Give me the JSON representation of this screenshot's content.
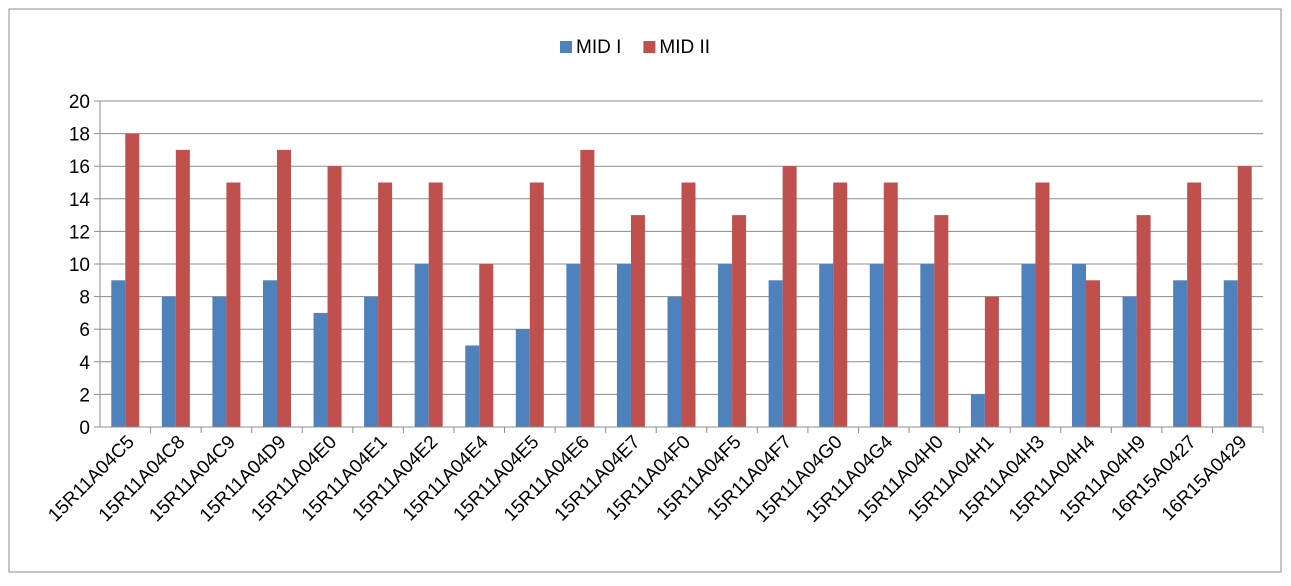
{
  "chart_data": {
    "type": "bar",
    "title": "",
    "xlabel": "",
    "ylabel": "",
    "ylim": [
      0,
      20
    ],
    "ytick_step": 2,
    "grid": true,
    "legend_position": "top",
    "categories": [
      "15R11A04C5",
      "15R11A04C8",
      "15R11A04C9",
      "15R11A04D9",
      "15R11A04E0",
      "15R11A04E1",
      "15R11A04E2",
      "15R11A04E4",
      "15R11A04E5",
      "15R11A04E6",
      "15R11A04E7",
      "15R11A04F0",
      "15R11A04F5",
      "15R11A04F7",
      "15R11A04G0",
      "15R11A04G4",
      "15R11A04H0",
      "15R11A04H1",
      "15R11A04H3",
      "15R11A04H4",
      "15R11A04H9",
      "16R15A0427",
      "16R15A0429"
    ],
    "series": [
      {
        "name": "MID I",
        "color": "#4f81bd",
        "values": [
          9,
          8,
          8,
          9,
          7,
          8,
          10,
          5,
          6,
          10,
          10,
          8,
          10,
          9,
          10,
          10,
          10,
          2,
          10,
          10,
          8,
          9,
          9
        ]
      },
      {
        "name": "MID II",
        "color": "#c0504d",
        "values": [
          18,
          17,
          15,
          17,
          16,
          15,
          15,
          10,
          15,
          17,
          13,
          15,
          13,
          16,
          15,
          15,
          13,
          8,
          15,
          9,
          13,
          15,
          16
        ]
      }
    ]
  }
}
